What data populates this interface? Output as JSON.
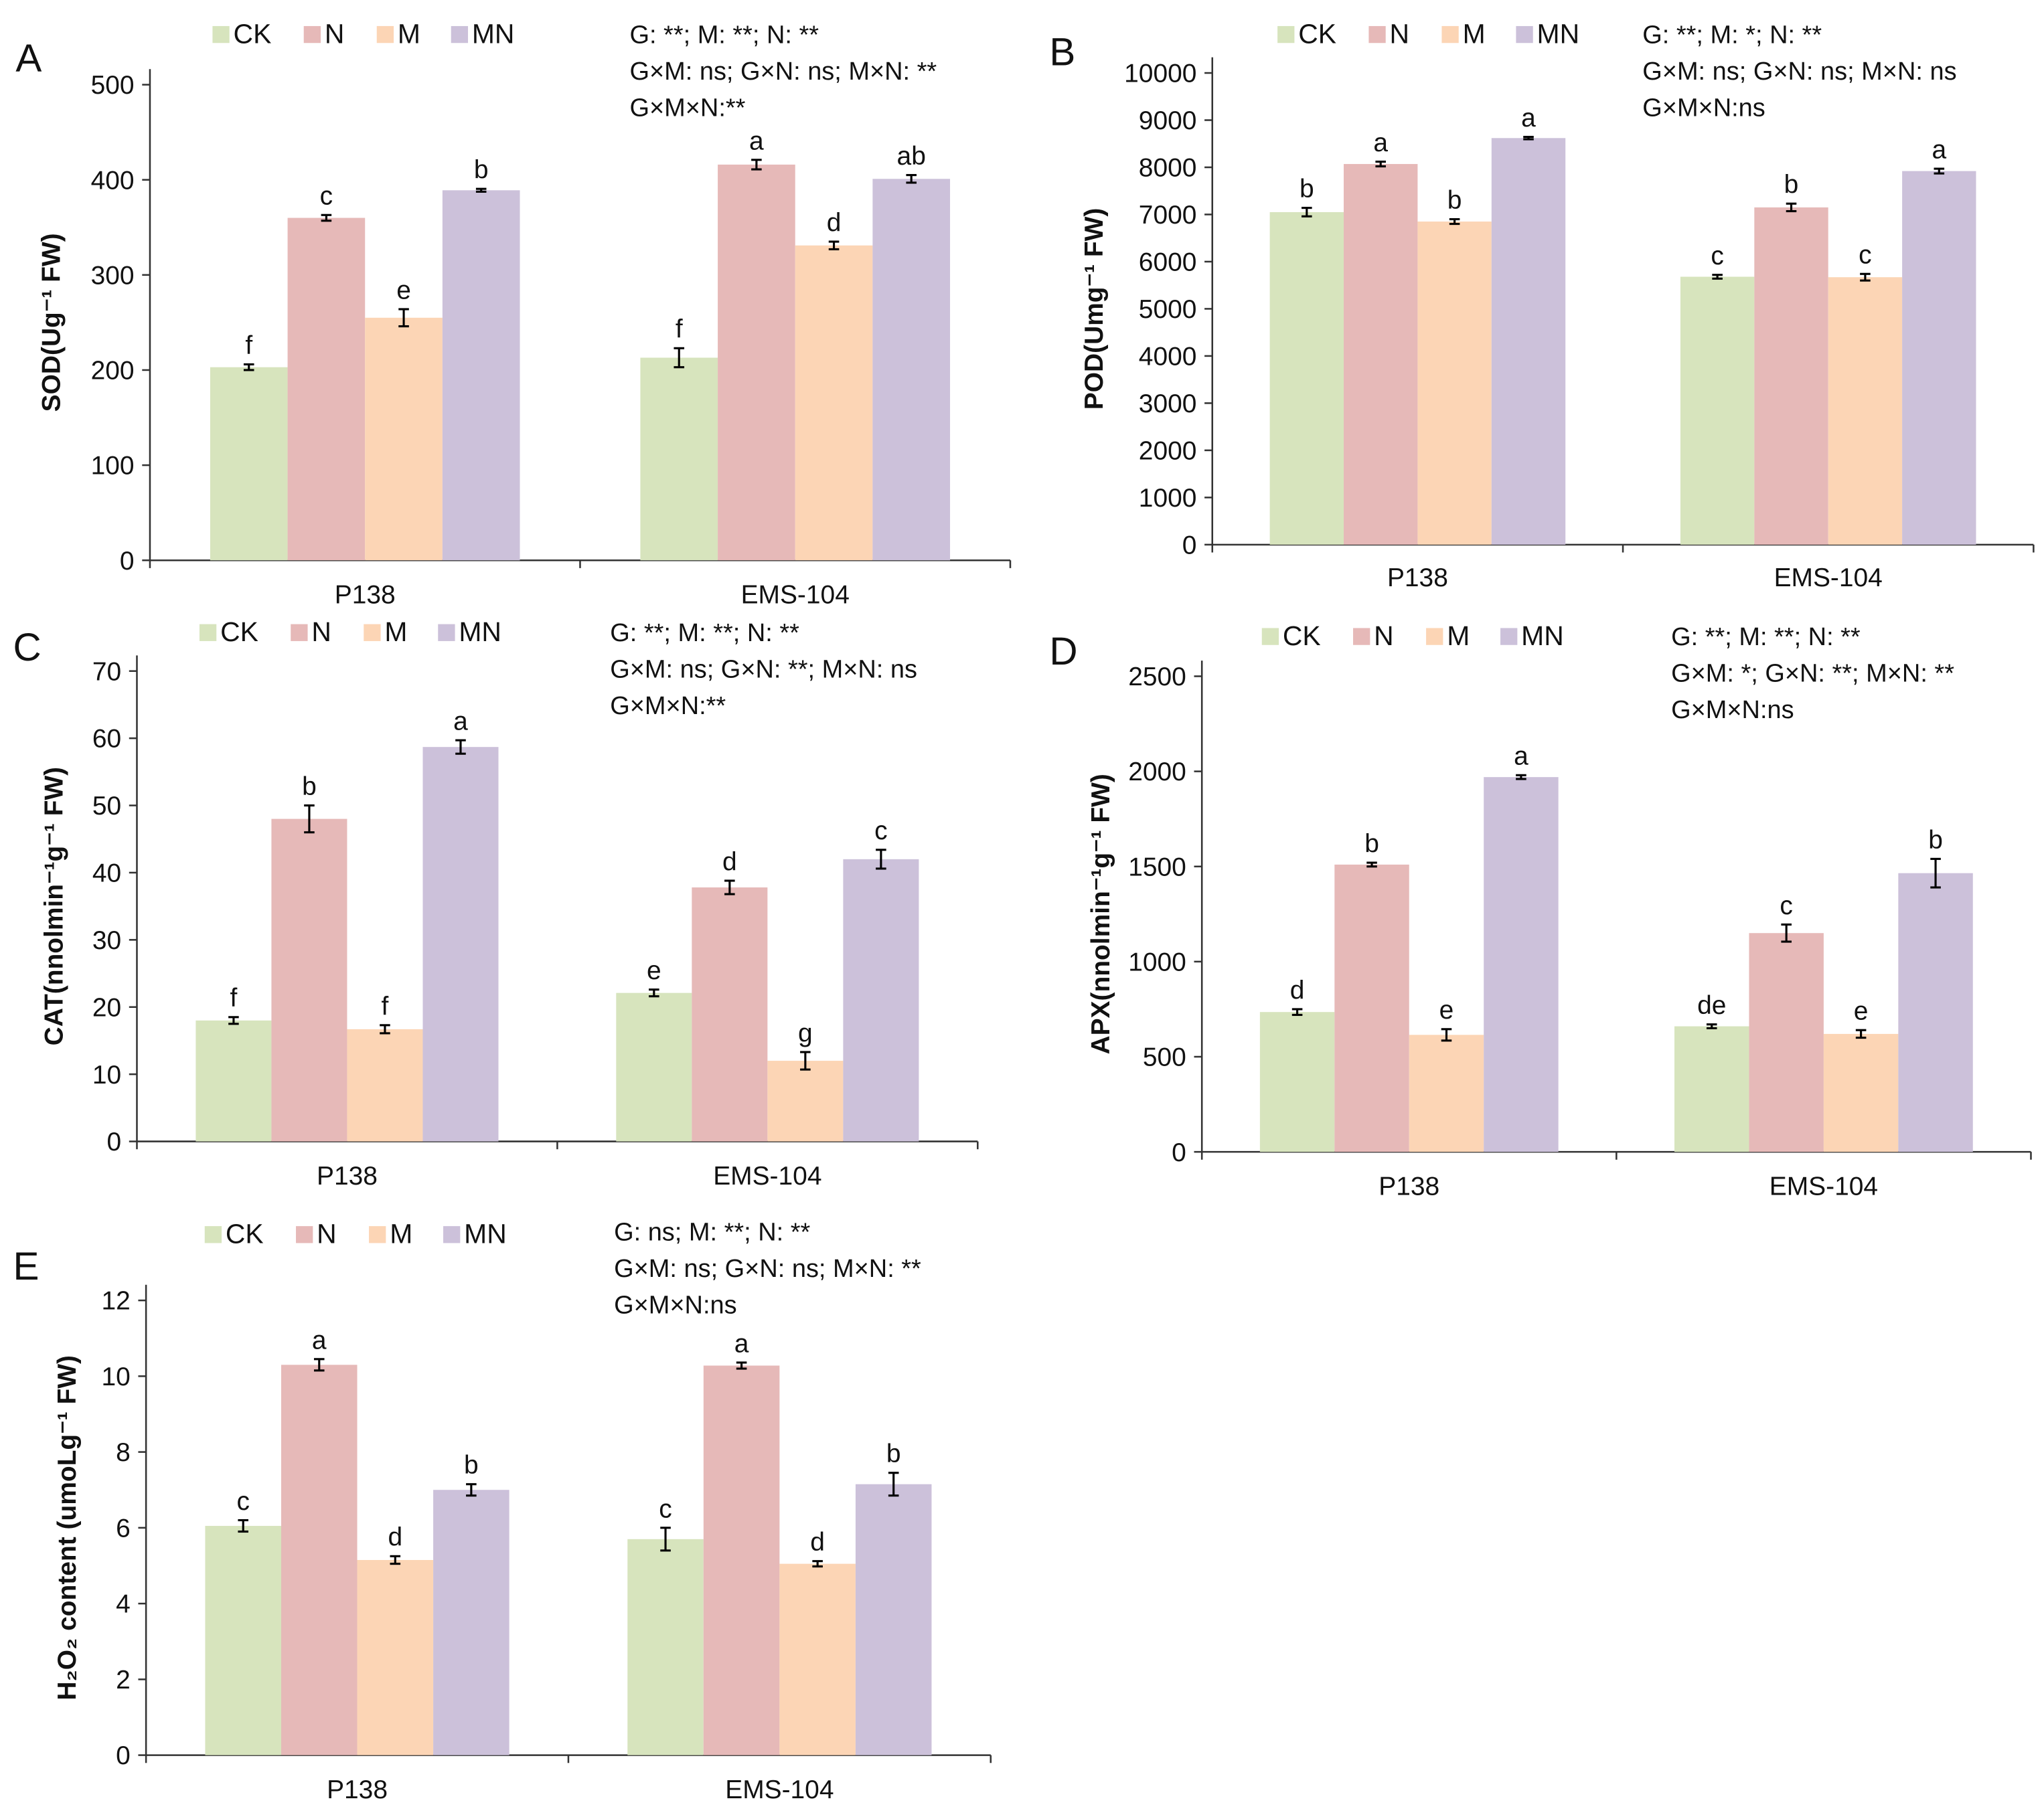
{
  "colors": {
    "CK": "#d7e4bd",
    "N": "#e6b9b8",
    "M": "#fcd5b5",
    "MN": "#ccc1da"
  },
  "chart_data": [
    {
      "type": "bar",
      "panel": "A",
      "ylabel": "SOD(Ug⁻¹ FW)",
      "categories": [
        "P138",
        "EMS-104"
      ],
      "legend": [
        "CK",
        "N",
        "M",
        "MN"
      ],
      "legend_placement": "top",
      "ylim": [
        0,
        500
      ],
      "yticks": [
        0,
        100,
        200,
        300,
        400,
        500
      ],
      "annotation": [
        "G: **; M: **; N: **",
        "G×M: ns; G×N: ns; M×N: **",
        "G×M×N:**"
      ],
      "series": [
        {
          "name": "CK",
          "values": [
            203,
            213
          ],
          "errors": [
            3,
            10
          ],
          "letters": [
            "f",
            "f"
          ]
        },
        {
          "name": "N",
          "values": [
            360,
            416
          ],
          "errors": [
            3,
            5
          ],
          "letters": [
            "c",
            "a"
          ]
        },
        {
          "name": "M",
          "values": [
            255,
            331
          ],
          "errors": [
            9,
            4
          ],
          "letters": [
            "e",
            "d"
          ]
        },
        {
          "name": "MN",
          "values": [
            389,
            401
          ],
          "errors": [
            1.5,
            4
          ],
          "letters": [
            "b",
            "ab"
          ]
        }
      ]
    },
    {
      "type": "bar",
      "panel": "B",
      "ylabel": "POD(Umg⁻¹ FW)",
      "categories": [
        "P138",
        "EMS-104"
      ],
      "legend": [
        "CK",
        "N",
        "M",
        "MN"
      ],
      "legend_placement": "top",
      "ylim": [
        0,
        10000
      ],
      "yticks": [
        0,
        1000,
        2000,
        3000,
        4000,
        5000,
        6000,
        7000,
        8000,
        9000,
        10000
      ],
      "annotation": [
        "G: **; M: *; N: **",
        "G×M: ns; G×N: ns; M×N: ns",
        "G×M×N:ns"
      ],
      "series": [
        {
          "name": "CK",
          "values": [
            7050,
            5680
          ],
          "errors": [
            90,
            40
          ],
          "letters": [
            "b",
            "c"
          ]
        },
        {
          "name": "N",
          "values": [
            8070,
            7150
          ],
          "errors": [
            50,
            80
          ],
          "letters": [
            "a",
            "b"
          ]
        },
        {
          "name": "M",
          "values": [
            6850,
            5670
          ],
          "errors": [
            50,
            70
          ],
          "letters": [
            "b",
            "c"
          ]
        },
        {
          "name": "MN",
          "values": [
            8620,
            7920
          ],
          "errors": [
            25,
            50
          ],
          "letters": [
            "a",
            "a"
          ]
        }
      ]
    },
    {
      "type": "bar",
      "panel": "C",
      "ylabel": "CAT(nnolmin⁻¹g⁻¹ FW)",
      "categories": [
        "P138",
        "EMS-104"
      ],
      "legend": [
        "CK",
        "N",
        "M",
        "MN"
      ],
      "legend_placement": "top",
      "ylim": [
        0,
        70
      ],
      "yticks": [
        0,
        10,
        20,
        30,
        40,
        50,
        60,
        70
      ],
      "annotation": [
        "G: **; M: **; N: **",
        "G×M: ns; G×N: **; M×N: ns",
        "G×M×N:**"
      ],
      "series": [
        {
          "name": "CK",
          "values": [
            18,
            22.1
          ],
          "errors": [
            0.5,
            0.5
          ],
          "letters": [
            "f",
            "e"
          ]
        },
        {
          "name": "N",
          "values": [
            48,
            37.8
          ],
          "errors": [
            2,
            1
          ],
          "letters": [
            "b",
            "d"
          ]
        },
        {
          "name": "M",
          "values": [
            16.7,
            12
          ],
          "errors": [
            0.6,
            1.3
          ],
          "letters": [
            "f",
            "g"
          ]
        },
        {
          "name": "MN",
          "values": [
            58.7,
            42
          ],
          "errors": [
            1,
            1.4
          ],
          "letters": [
            "a",
            "c"
          ]
        }
      ]
    },
    {
      "type": "bar",
      "panel": "D",
      "ylabel": "APX(nnolmin⁻¹g⁻¹ FW)",
      "categories": [
        "P138",
        "EMS-104"
      ],
      "legend": [
        "CK",
        "N",
        "M",
        "MN"
      ],
      "legend_placement": "top",
      "ylim": [
        0,
        2500
      ],
      "yticks": [
        0,
        500,
        1000,
        1500,
        2000,
        2500
      ],
      "annotation": [
        "G: **; M: **; N: **",
        "G×M: *; G×N: **; M×N: **",
        "G×M×N:ns"
      ],
      "series": [
        {
          "name": "CK",
          "values": [
            735,
            660
          ],
          "errors": [
            15,
            10
          ],
          "letters": [
            "d",
            "de"
          ]
        },
        {
          "name": "N",
          "values": [
            1510,
            1150
          ],
          "errors": [
            10,
            45
          ],
          "letters": [
            "b",
            "c"
          ]
        },
        {
          "name": "M",
          "values": [
            615,
            620
          ],
          "errors": [
            30,
            20
          ],
          "letters": [
            "e",
            "e"
          ]
        },
        {
          "name": "MN",
          "values": [
            1970,
            1465
          ],
          "errors": [
            10,
            75
          ],
          "letters": [
            "a",
            "b"
          ]
        }
      ]
    },
    {
      "type": "bar",
      "panel": "E",
      "ylabel": "H₂O₂ content (umoLg⁻¹ FW)",
      "categories": [
        "P138",
        "EMS-104"
      ],
      "legend": [
        "CK",
        "N",
        "M",
        "MN"
      ],
      "legend_placement": "top",
      "ylim": [
        0,
        12
      ],
      "yticks": [
        0,
        2,
        4,
        6,
        8,
        10,
        12
      ],
      "annotation": [
        "G: ns; M: **; N: **",
        "G×M: ns; G×N: ns; M×N: **",
        "G×M×N:ns"
      ],
      "series": [
        {
          "name": "CK",
          "values": [
            6.05,
            5.7
          ],
          "errors": [
            0.15,
            0.3
          ],
          "letters": [
            "c",
            "c"
          ]
        },
        {
          "name": "N",
          "values": [
            10.3,
            10.28
          ],
          "errors": [
            0.15,
            0.08
          ],
          "letters": [
            "a",
            "a"
          ]
        },
        {
          "name": "M",
          "values": [
            5.15,
            5.05
          ],
          "errors": [
            0.1,
            0.07
          ],
          "letters": [
            "d",
            "d"
          ]
        },
        {
          "name": "MN",
          "values": [
            7.0,
            7.15
          ],
          "errors": [
            0.15,
            0.3
          ],
          "letters": [
            "b",
            "b"
          ]
        }
      ]
    }
  ]
}
